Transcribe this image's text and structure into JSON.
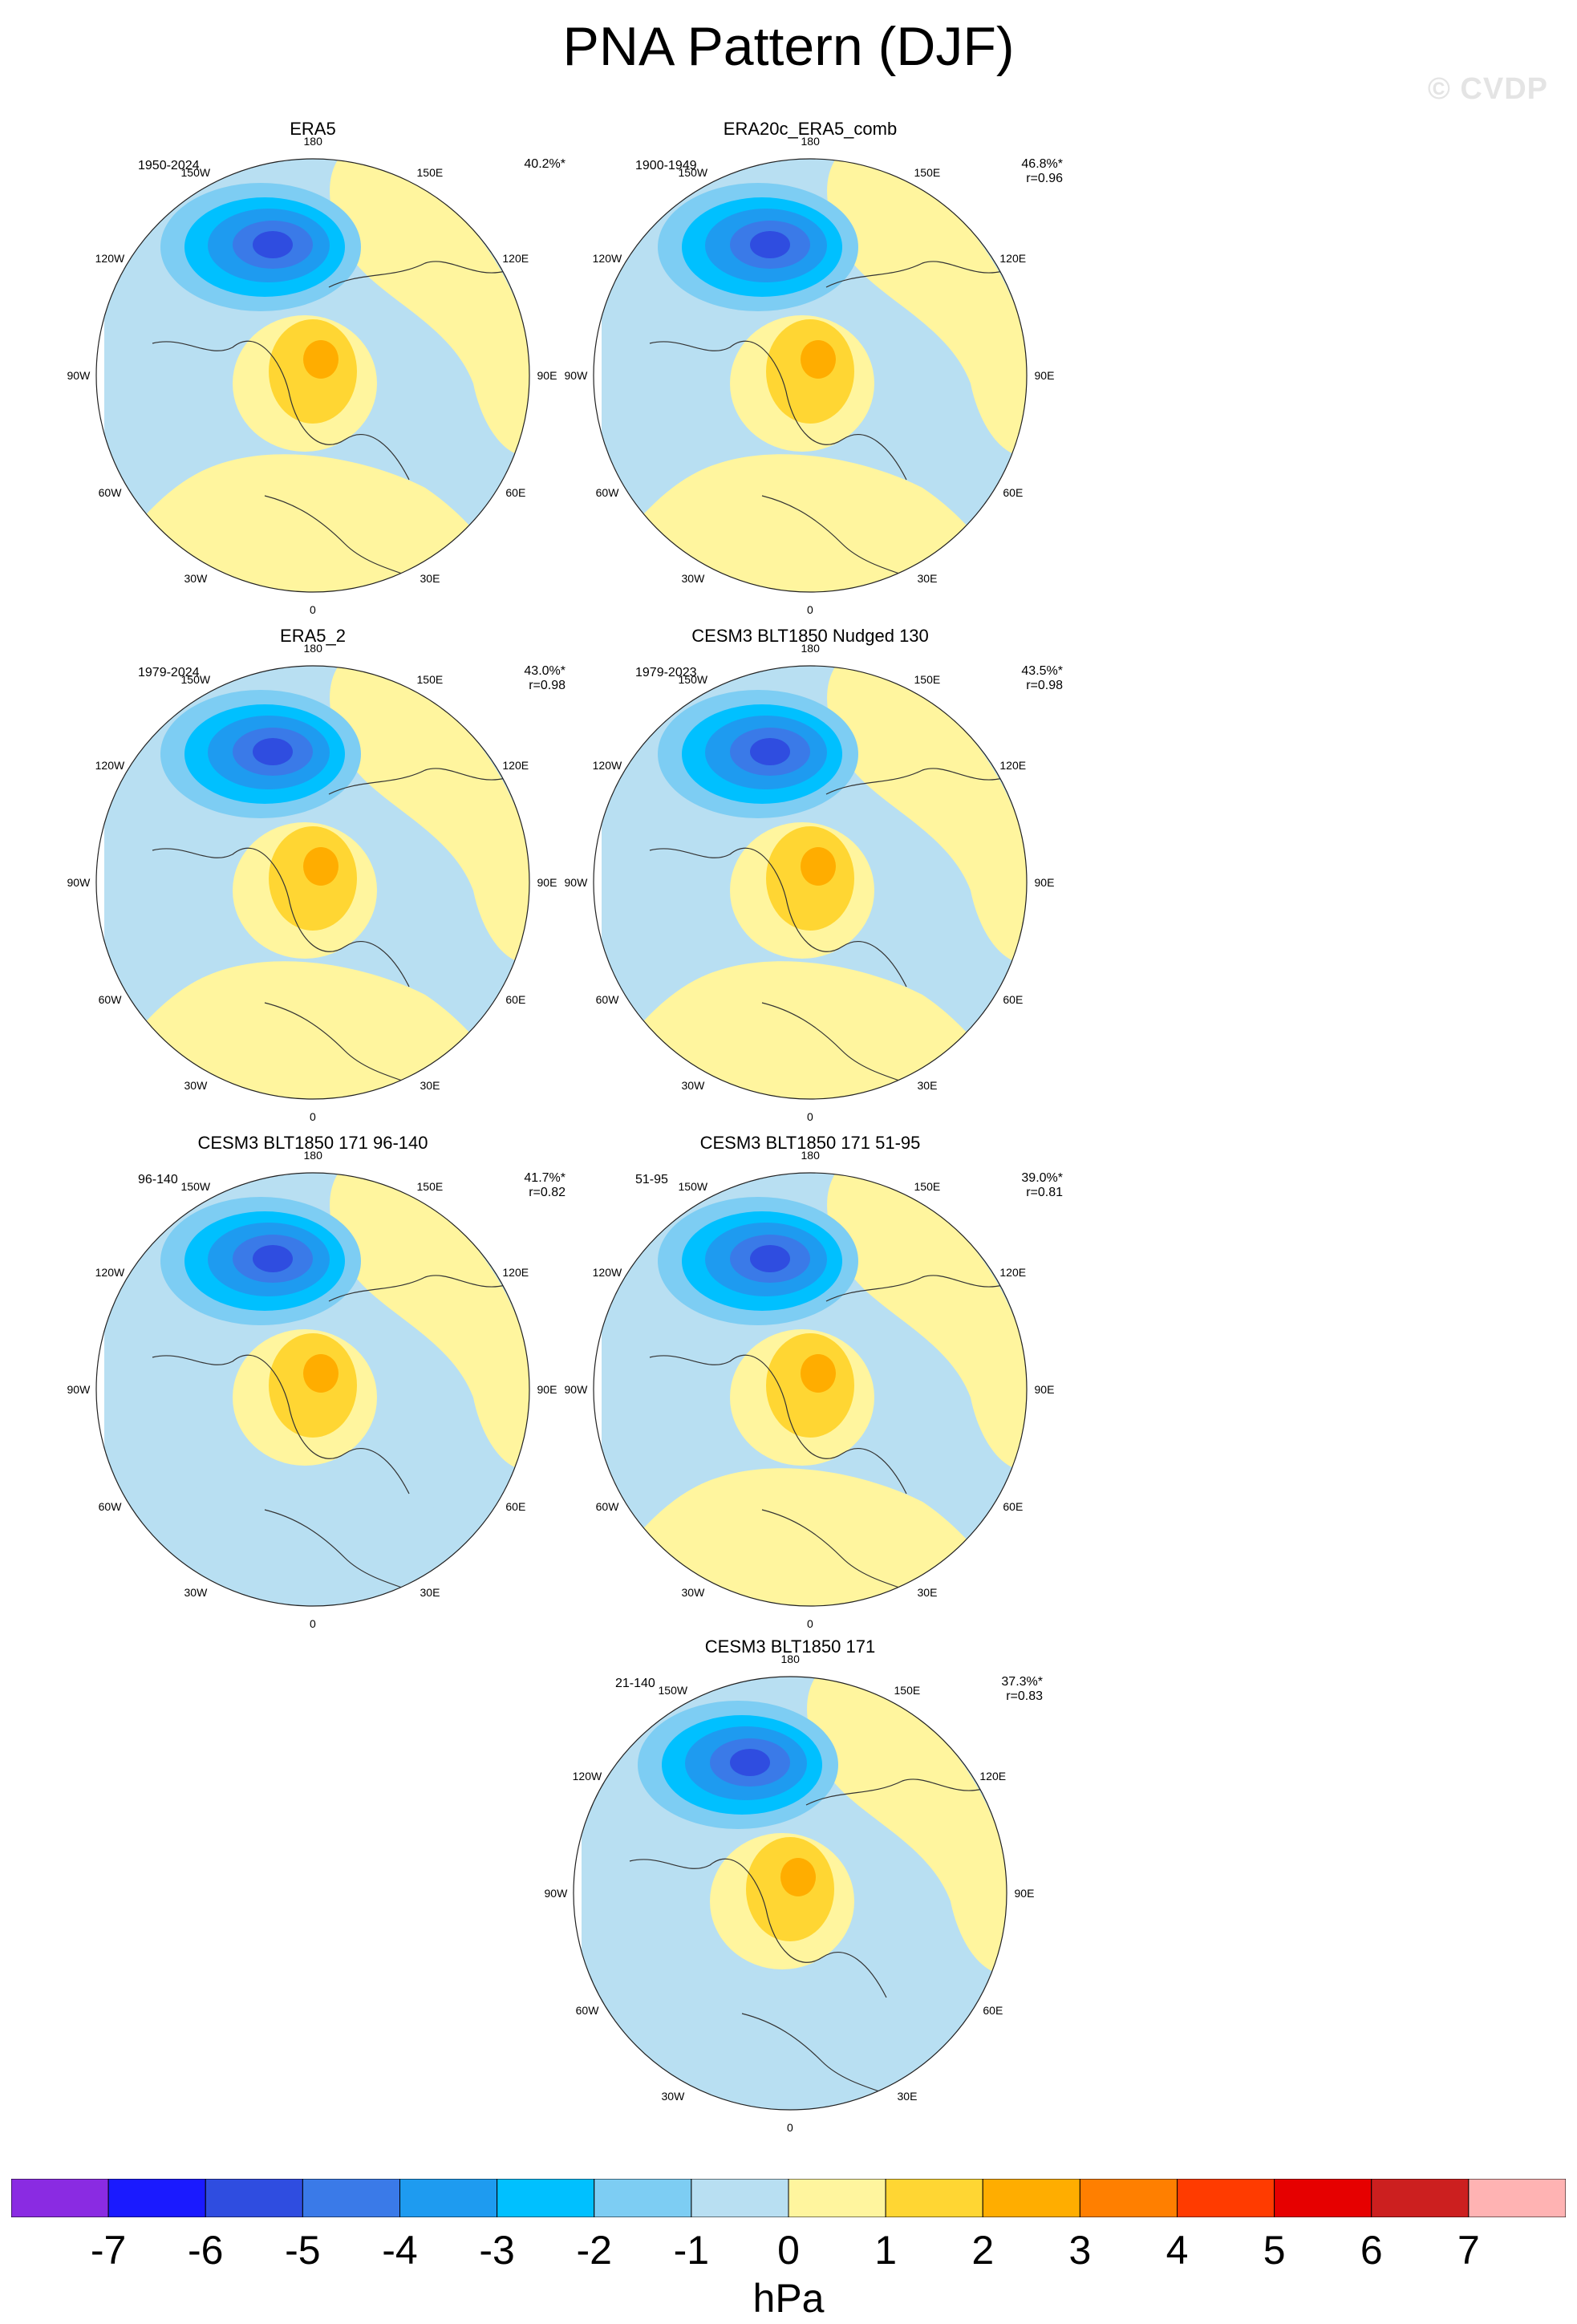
{
  "title": "PNA Pattern (DJF)",
  "watermark": "© CVDP",
  "panels": [
    {
      "title": "ERA5",
      "period": "1950-2024",
      "pct": "40.2%*",
      "r": ""
    },
    {
      "title": "ERA20c_ERA5_comb",
      "period": "1900-1949",
      "pct": "46.8%*",
      "r": "r=0.96"
    },
    {
      "title": "ERA5_2",
      "period": "1979-2024",
      "pct": "43.0%*",
      "r": "r=0.98"
    },
    {
      "title": "CESM3 BLT1850 Nudged 130",
      "period": "1979-2023",
      "pct": "43.5%*",
      "r": "r=0.98"
    },
    {
      "title": "CESM3 BLT1850 171 96-140",
      "period": "96-140",
      "pct": "41.7%*",
      "r": "r=0.82"
    },
    {
      "title": "CESM3 BLT1850 171 51-95",
      "period": "51-95",
      "pct": "39.0%*",
      "r": "r=0.81"
    },
    {
      "title": "CESM3 BLT1850 171",
      "period": "21-140",
      "pct": "37.3%*",
      "r": "r=0.83"
    }
  ],
  "lon_labels": {
    "top": "180",
    "upper_left": "150W",
    "upper_right": "150E",
    "left_upper": "120W",
    "right_upper": "120E",
    "left": "90W",
    "right": "90E",
    "left_lower": "60W",
    "right_lower": "60E",
    "lower_left": "30W",
    "lower_right": "30E",
    "bottom": "0"
  },
  "colorbar": {
    "colors": [
      "#8a2be2",
      "#1a1aff",
      "#2f4de0",
      "#3a7ae8",
      "#1e9bf0",
      "#00c0ff",
      "#7dcdf3",
      "#b8dff2",
      "#fff59e",
      "#ffd633",
      "#ffad00",
      "#ff7f00",
      "#ff3b00",
      "#e60000",
      "#cc1f1f",
      "#ffb3b3"
    ],
    "ticks": [
      "-7",
      "-6",
      "-5",
      "-4",
      "-3",
      "-2",
      "-1",
      "0",
      "1",
      "2",
      "3",
      "4",
      "5",
      "6",
      "7"
    ],
    "unit": "hPa"
  }
}
